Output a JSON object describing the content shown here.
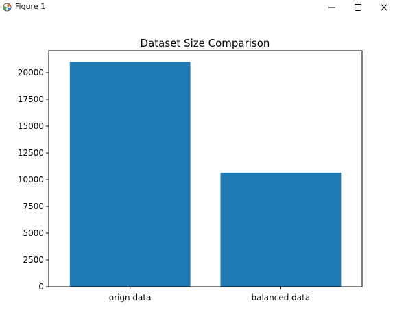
{
  "window": {
    "title": "Figure 1",
    "icon": "matplotlib-figure-icon",
    "controls": [
      "minimize-icon",
      "maximize-icon",
      "close-icon"
    ]
  },
  "chart_data": {
    "type": "bar",
    "title": "Dataset Size Comparison",
    "xlabel": "",
    "ylabel": "",
    "categories": [
      "orign data",
      "balanced data"
    ],
    "values": [
      21000,
      10650
    ],
    "ylim": [
      0,
      22050
    ],
    "yticks": [
      0,
      2500,
      5000,
      7500,
      10000,
      12500,
      15000,
      17500,
      20000
    ],
    "bar_color": "#1f77b4",
    "grid": false,
    "legend": "none"
  }
}
